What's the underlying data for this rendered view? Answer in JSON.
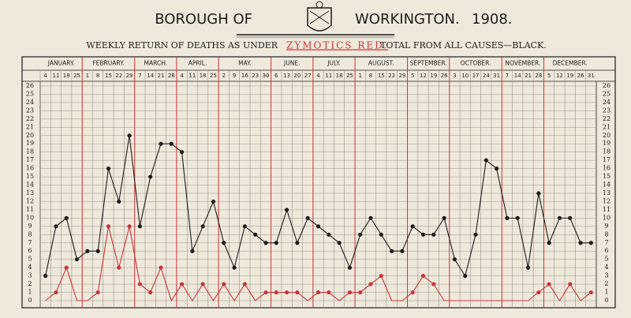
{
  "chart_data": {
    "type": "line",
    "title": [
      "BOROUGH OF",
      "WORKINGTON.",
      "1908."
    ],
    "subtitle": [
      "WEEKLY RETURN OF DEATHS AS UNDER",
      "ZYMOTICS RED.",
      "TOTAL FROM ALL CAUSES—BLACK."
    ],
    "months": [
      "JANUARY.",
      "FEBRUARY.",
      "MARCH.",
      "APRIL.",
      "MAY.",
      "JUNE.",
      "JULY.",
      "AUGUST.",
      "SEPTEMBER.",
      "OCTOBER.",
      "NOVEMBER.",
      "DECEMBER."
    ],
    "categories": [
      "4",
      "11",
      "18",
      "25",
      "1",
      "8",
      "15",
      "22",
      "29",
      "7",
      "14",
      "21",
      "28",
      "4",
      "11",
      "18",
      "25",
      "2",
      "9",
      "16",
      "23",
      "30",
      "6",
      "13",
      "20",
      "27",
      "4",
      "11",
      "18",
      "25",
      "1",
      "8",
      "15",
      "22",
      "29",
      "5",
      "12",
      "19",
      "26",
      "3",
      "10",
      "17",
      "24",
      "31",
      "7",
      "14",
      "21",
      "28",
      "5",
      "12",
      "19",
      "26",
      "31"
    ],
    "series": [
      {
        "name": "TOTAL FROM ALL CAUSES",
        "color": "#1e1c1a",
        "values": [
          3,
          9,
          10,
          5,
          6,
          6,
          16,
          12,
          20,
          9,
          15,
          19,
          19,
          18,
          6,
          9,
          12,
          7,
          4,
          9,
          8,
          7,
          7,
          11,
          7,
          10,
          9,
          8,
          7,
          4,
          8,
          10,
          8,
          6,
          6,
          9,
          8,
          8,
          10,
          5,
          3,
          8,
          17,
          16,
          10,
          10,
          4,
          13,
          7,
          10,
          10,
          7,
          7
        ]
      },
      {
        "name": "ZYMOTICS",
        "color": "#c8343a",
        "values": [
          0,
          1,
          4,
          0,
          0,
          1,
          9,
          4,
          9,
          2,
          1,
          4,
          0,
          2,
          0,
          2,
          0,
          2,
          0,
          2,
          0,
          1,
          1,
          1,
          1,
          0,
          1,
          1,
          0,
          1,
          1,
          2,
          3,
          0,
          0,
          1,
          3,
          2,
          0,
          0,
          0,
          0,
          0,
          0,
          0,
          0,
          0,
          1,
          2,
          0,
          2,
          0,
          1
        ]
      }
    ],
    "ylim": [
      0,
      26
    ],
    "yticks": [
      0,
      1,
      2,
      3,
      4,
      5,
      6,
      7,
      8,
      9,
      10,
      11,
      12,
      13,
      14,
      15,
      16,
      17,
      18,
      19,
      20,
      21,
      22,
      23,
      24,
      25,
      26
    ],
    "grid": true
  }
}
